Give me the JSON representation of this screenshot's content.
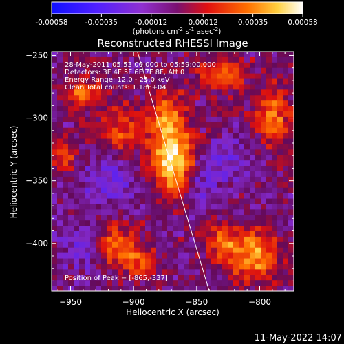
{
  "chart_data": {
    "type": "heatmap",
    "title": "Reconstructed RHESSI Image",
    "xlabel": "Heliocentric X (arcsec)",
    "ylabel": "Heliocentric Y (arcsec)",
    "xlim": [
      -965,
      -773
    ],
    "ylim": [
      -438,
      -247
    ],
    "x_ticks": [
      -950,
      -900,
      -850,
      -800
    ],
    "y_ticks": [
      -250,
      -300,
      -350,
      -400
    ],
    "colorbar": {
      "ticks": [
        "-0.00058",
        "-0.00035",
        "-0.00012",
        "0.00012",
        "0.00035",
        "0.00058"
      ],
      "range": [
        -0.00058,
        0.00058
      ],
      "label_main": "(photons cm",
      "label_exp1": "-2",
      "label_mid": " s",
      "label_exp2": "-1",
      "label_end": " asec",
      "label_exp3": "-2",
      "label_close": ")"
    },
    "annotations": [
      "28-May-2011 05:53:00.000 to 05:59:00.000",
      "Detectors: 3F 4F 5F 6F 7F 8F, Att 0",
      "Energy Range: 12.0 - 25.0 keV",
      "Clean     Total counts: 1.18E+04"
    ],
    "peak_text": "Position of Peak = [-865,-337]",
    "peak": [
      -865,
      -337
    ],
    "limb_line": [
      [
        -897,
        -247
      ],
      [
        -840,
        -438
      ]
    ],
    "sources": [
      {
        "x": -868,
        "y": -337,
        "amp": 1.0,
        "sx": 12,
        "sy": 18
      },
      {
        "x": -873,
        "y": -300,
        "amp": 0.55,
        "sx": 10,
        "sy": 16
      },
      {
        "x": -910,
        "y": -310,
        "amp": 0.45,
        "sx": 14,
        "sy": 14
      },
      {
        "x": -940,
        "y": -280,
        "amp": 0.5,
        "sx": 10,
        "sy": 10
      },
      {
        "x": -915,
        "y": -400,
        "amp": 0.55,
        "sx": 12,
        "sy": 12
      },
      {
        "x": -895,
        "y": -415,
        "amp": 0.4,
        "sx": 10,
        "sy": 10
      },
      {
        "x": -805,
        "y": -410,
        "amp": 0.7,
        "sx": 14,
        "sy": 14
      },
      {
        "x": -790,
        "y": -300,
        "amp": 0.55,
        "sx": 10,
        "sy": 18
      },
      {
        "x": -830,
        "y": -265,
        "amp": 0.5,
        "sx": 14,
        "sy": 10
      },
      {
        "x": -830,
        "y": -400,
        "amp": 0.5,
        "sx": 10,
        "sy": 10
      },
      {
        "x": -955,
        "y": -330,
        "amp": 0.4,
        "sx": 8,
        "sy": 10
      },
      {
        "x": -850,
        "y": -350,
        "amp": -0.35,
        "sx": 14,
        "sy": 14
      },
      {
        "x": -920,
        "y": -350,
        "amp": -0.3,
        "sx": 16,
        "sy": 16
      },
      {
        "x": -940,
        "y": -405,
        "amp": -0.3,
        "sx": 12,
        "sy": 12
      },
      {
        "x": -820,
        "y": -330,
        "amp": -0.25,
        "sx": 14,
        "sy": 12
      }
    ]
  },
  "footer_timestamp": "11-May-2022 14:07"
}
